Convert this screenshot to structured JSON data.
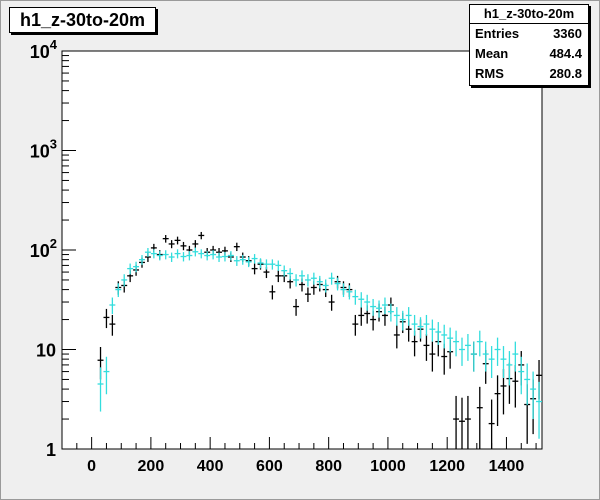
{
  "chart_data": {
    "type": "scatter",
    "title": "h1_z-30to-20m",
    "xlim": [
      -100,
      1520
    ],
    "ylim": [
      1,
      10000
    ],
    "yscale": "log",
    "x_ticks": [
      0,
      200,
      400,
      600,
      800,
      1000,
      1200,
      1400
    ],
    "y_ticks": [
      {
        "value": 1,
        "base": "1",
        "exp": ""
      },
      {
        "value": 10,
        "base": "10",
        "exp": ""
      },
      {
        "value": 100,
        "base": "10",
        "exp": "2"
      },
      {
        "value": 1000,
        "base": "10",
        "exp": "3"
      },
      {
        "value": 10000,
        "base": "10",
        "exp": "4"
      }
    ],
    "x_error": 10,
    "stats": {
      "title": "h1_z-30to-20m",
      "entries_label": "Entries",
      "entries": "3360",
      "mean_label": "Mean",
      "mean": "484.4",
      "rms_label": "RMS",
      "rms": "280.8"
    },
    "series": [
      {
        "color": "#000000",
        "x": [
          30,
          50,
          70,
          90,
          110,
          130,
          150,
          170,
          190,
          210,
          230,
          250,
          270,
          290,
          310,
          330,
          350,
          370,
          390,
          410,
          430,
          450,
          470,
          490,
          510,
          530,
          550,
          570,
          590,
          610,
          630,
          650,
          670,
          690,
          710,
          730,
          750,
          770,
          790,
          810,
          830,
          850,
          870,
          890,
          910,
          930,
          950,
          970,
          990,
          1010,
          1030,
          1050,
          1070,
          1090,
          1110,
          1130,
          1150,
          1170,
          1190,
          1210,
          1230,
          1250,
          1270,
          1290,
          1310,
          1330,
          1350,
          1370,
          1390,
          1410,
          1430,
          1450,
          1470,
          1490,
          1510
        ],
        "y": [
          7.8,
          21,
          18,
          42,
          44,
          55,
          63,
          75,
          85,
          105,
          90,
          130,
          115,
          125,
          110,
          100,
          115,
          140,
          95,
          100,
          95,
          98,
          85,
          108,
          85,
          78,
          65,
          72,
          60,
          38,
          55,
          55,
          48,
          27,
          45,
          36,
          42,
          45,
          40,
          30,
          48,
          42,
          40,
          18,
          22,
          23,
          20,
          24,
          22,
          28,
          14,
          19,
          16,
          12,
          16,
          11,
          9,
          12,
          8.5,
          9.5,
          2.0,
          1.9,
          2.0,
          9.0,
          2.6,
          7.2,
          1.8,
          3.6,
          4.3,
          5.1,
          4.8,
          7.0,
          2.8,
          3.2,
          5.5
        ]
      },
      {
        "color": "#33dddd",
        "x": [
          30,
          50,
          70,
          90,
          110,
          130,
          150,
          170,
          190,
          210,
          230,
          250,
          270,
          290,
          310,
          330,
          350,
          370,
          390,
          410,
          430,
          450,
          470,
          490,
          510,
          530,
          550,
          570,
          590,
          610,
          630,
          650,
          670,
          690,
          710,
          730,
          750,
          770,
          790,
          810,
          830,
          850,
          870,
          890,
          910,
          930,
          950,
          970,
          990,
          1010,
          1030,
          1050,
          1070,
          1090,
          1110,
          1130,
          1150,
          1170,
          1190,
          1210,
          1230,
          1250,
          1270,
          1290,
          1310,
          1330,
          1350,
          1370,
          1390,
          1410,
          1430,
          1450,
          1470,
          1490,
          1510
        ],
        "y": [
          4.5,
          6,
          28,
          40,
          50,
          65,
          68,
          80,
          95,
          92,
          88,
          90,
          85,
          92,
          86,
          88,
          96,
          92,
          88,
          90,
          85,
          86,
          88,
          78,
          80,
          76,
          82,
          74,
          72,
          72,
          70,
          62,
          58,
          50,
          55,
          50,
          52,
          48,
          44,
          52,
          46,
          40,
          38,
          34,
          32,
          30,
          27,
          26,
          28,
          24,
          22,
          20,
          22,
          18,
          17,
          18,
          16,
          15,
          14,
          13,
          12,
          10,
          11,
          9,
          12,
          9,
          8,
          10,
          8,
          7,
          9,
          6,
          5,
          4,
          3
        ]
      }
    ]
  }
}
